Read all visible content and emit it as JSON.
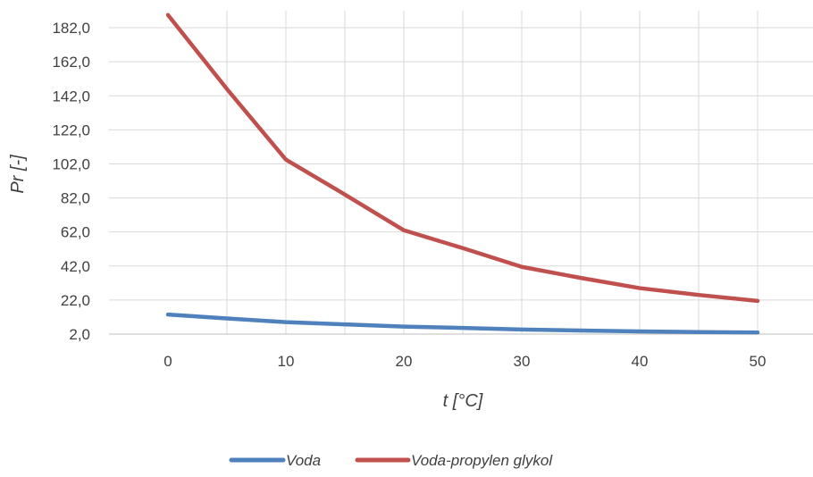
{
  "chart_data": {
    "type": "line",
    "xlabel": "t [°C]",
    "ylabel": "Pr [-]",
    "x": [
      0,
      5,
      10,
      15,
      20,
      25,
      30,
      35,
      40,
      45,
      50
    ],
    "x_ticks": [
      "0",
      "10",
      "20",
      "30",
      "40",
      "50"
    ],
    "y_ticks": [
      "2,0",
      "22,0",
      "42,0",
      "62,0",
      "82,0",
      "102,0",
      "122,0",
      "142,0",
      "162,0",
      "182,0"
    ],
    "xlim": [
      -5,
      55
    ],
    "ylim": [
      2,
      192
    ],
    "grid": true,
    "legend_position": "bottom",
    "series": [
      {
        "name": "Voda",
        "color": "#4f81bd",
        "values": [
          13.5,
          11.2,
          9.0,
          7.7,
          6.4,
          5.6,
          4.7,
          4.1,
          3.6,
          3.2,
          2.9
        ]
      },
      {
        "name": "Voda-propylen glykol",
        "color": "#c0504d",
        "values": [
          189.5,
          146.0,
          104.5,
          84.0,
          63.0,
          52.5,
          41.5,
          35.0,
          29.0,
          25.0,
          21.5
        ]
      }
    ]
  }
}
